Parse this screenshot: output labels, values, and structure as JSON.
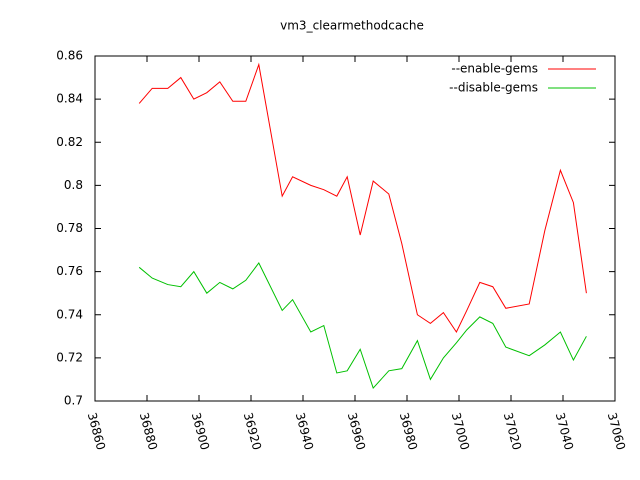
{
  "chart_data": {
    "type": "line",
    "title": "vm3_clearmethodcache",
    "x": [
      36877,
      36882,
      36888,
      36893,
      36898,
      36903,
      36908,
      36913,
      36918,
      36923,
      36932,
      36936,
      36943,
      36948,
      36953,
      36957,
      36962,
      36967,
      36973,
      36978,
      36984,
      36989,
      36994,
      36999,
      37003,
      37008,
      37013,
      37018,
      37027,
      37033,
      37039,
      37044,
      37049
    ],
    "series": [
      {
        "name": "--enable-gems",
        "color": "#ff0000",
        "values": [
          0.838,
          0.845,
          0.845,
          0.85,
          0.84,
          0.843,
          0.848,
          0.839,
          0.839,
          0.856,
          0.795,
          0.804,
          0.8,
          0.798,
          0.795,
          0.804,
          0.777,
          0.802,
          0.796,
          0.773,
          0.74,
          0.736,
          0.741,
          0.732,
          0.742,
          0.755,
          0.753,
          0.743,
          0.745,
          0.779,
          0.807,
          0.792,
          0.75
        ]
      },
      {
        "name": "--disable-gems",
        "color": "#00c000",
        "values": [
          0.762,
          0.757,
          0.754,
          0.753,
          0.76,
          0.75,
          0.755,
          0.752,
          0.756,
          0.764,
          0.742,
          0.747,
          0.732,
          0.735,
          0.713,
          0.714,
          0.724,
          0.706,
          0.714,
          0.715,
          0.728,
          0.71,
          0.72,
          0.727,
          0.733,
          0.739,
          0.736,
          0.725,
          0.721,
          0.726,
          0.732,
          0.719,
          0.73
        ]
      }
    ],
    "xlim": [
      36860,
      37060
    ],
    "xticks": [
      36860,
      36880,
      36900,
      36920,
      36940,
      36960,
      36980,
      37000,
      37020,
      37040,
      37060
    ],
    "ylim": [
      0.7,
      0.86
    ],
    "yticks": [
      0.7,
      0.72,
      0.74,
      0.76,
      0.78,
      0.8,
      0.82,
      0.84,
      0.86
    ],
    "legend": "top-right"
  }
}
